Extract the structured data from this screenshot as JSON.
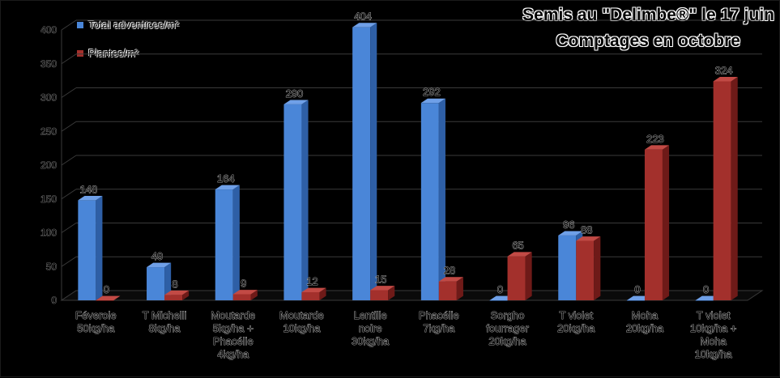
{
  "chart_data": {
    "type": "bar",
    "title_lines": [
      "Semis au \"Delimbe®\" le 17 juin",
      "Comptages en octobre"
    ],
    "categories": [
      [
        "Féverole",
        "50kg/ha"
      ],
      [
        "T Michelli",
        "8kg/ha"
      ],
      [
        "Moutarde",
        "5kg/ha +",
        "Phacélie",
        "4kg/ha"
      ],
      [
        "Moutarde",
        "10kg/ha"
      ],
      [
        "Lentille",
        "noire",
        "30kg/ha"
      ],
      [
        "Phacélie",
        "7kg/ha"
      ],
      [
        "Sorgho",
        "fourrager",
        "20kg/ha"
      ],
      [
        "T violet",
        "20kg/ha"
      ],
      [
        "Moha",
        "20kg/ha"
      ],
      [
        "T violet",
        "10kg/ha +",
        "Moha",
        "10kg/ha"
      ]
    ],
    "series": [
      {
        "name": "Total adventices/m²",
        "color": "#4a86d8",
        "side": "#2e5fa6",
        "top": "#6fa0e8",
        "values": [
          148,
          49,
          164,
          290,
          404,
          292,
          0,
          96,
          0,
          0
        ],
        "labels": [
          "148",
          "49",
          "164",
          "290",
          "404",
          "292",
          "0",
          "96",
          "0",
          "0"
        ]
      },
      {
        "name": "Plantes/m²",
        "color": "#a3302c",
        "side": "#6e1a18",
        "top": "#c24a45",
        "values": [
          0,
          8,
          9,
          12,
          15,
          28,
          65,
          88,
          223,
          324
        ],
        "labels": [
          "0",
          "8",
          "9",
          "12",
          "15",
          "28",
          "65",
          "88",
          "223",
          "324"
        ]
      }
    ],
    "yticks": [
      "0",
      "50",
      "100",
      "150",
      "200",
      "250",
      "300",
      "350",
      "400"
    ],
    "ylim": [
      0,
      400
    ],
    "grid": true,
    "legend": "top-left",
    "xlabel": "",
    "ylabel": ""
  }
}
